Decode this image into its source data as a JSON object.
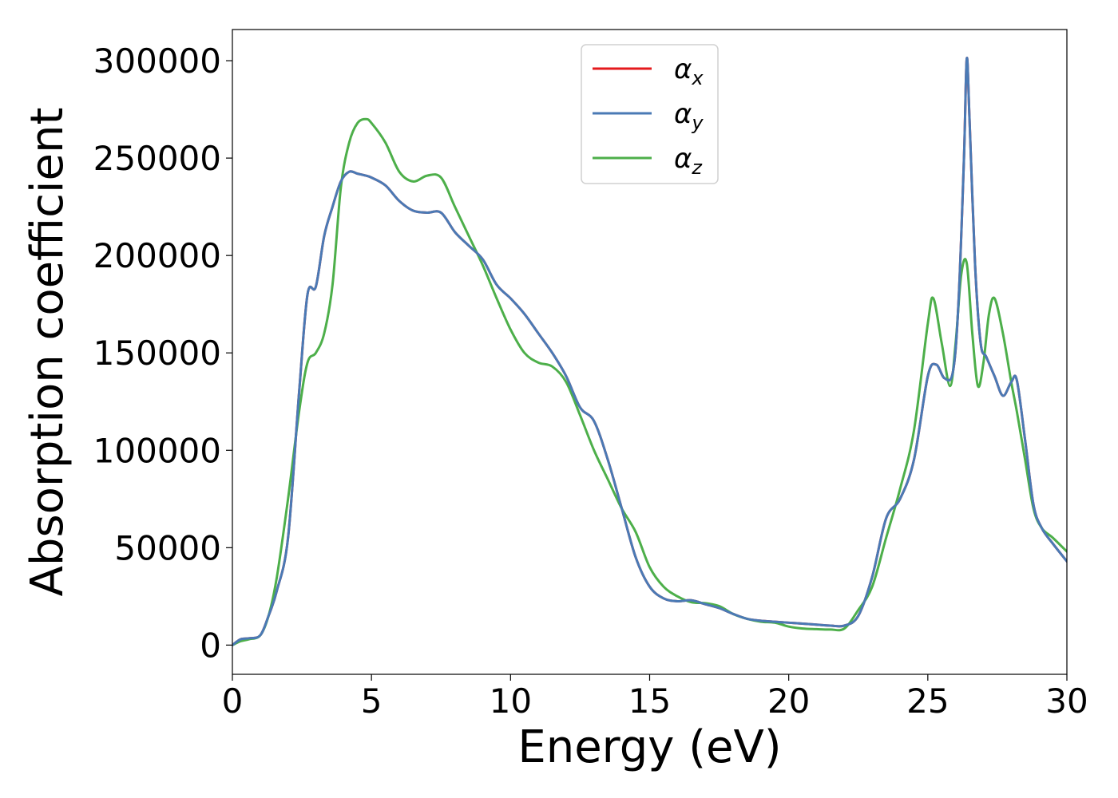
{
  "chart_data": {
    "type": "line",
    "xlabel": "Energy (eV)",
    "ylabel": "Absorption coefficient",
    "xlim": [
      0,
      30
    ],
    "ylim": [
      -15000,
      316000
    ],
    "xticks": [
      0,
      5,
      10,
      15,
      20,
      25,
      30
    ],
    "yticks": [
      0,
      50000,
      100000,
      150000,
      200000,
      250000,
      300000
    ],
    "grid": false,
    "legend_position": "top-center",
    "series": [
      {
        "name": "α",
        "subscript": "x",
        "color": "#e41a1c",
        "x": [
          0,
          0.3,
          0.6,
          1.0,
          1.3,
          1.6,
          2.0,
          2.4,
          2.7,
          3.0,
          3.3,
          3.6,
          3.9,
          4.2,
          4.5,
          4.8,
          5.0,
          5.5,
          6.0,
          6.5,
          7.0,
          7.5,
          8.0,
          8.5,
          9.0,
          9.5,
          10.0,
          10.5,
          11.0,
          11.5,
          12.0,
          12.5,
          13.0,
          13.5,
          14.0,
          14.5,
          15.0,
          15.5,
          16.0,
          16.5,
          17.0,
          17.5,
          18.0,
          18.5,
          19.0,
          19.5,
          20.0,
          20.5,
          21.0,
          21.5,
          22.0,
          22.5,
          23.0,
          23.5,
          24.0,
          24.5,
          25.0,
          25.3,
          25.6,
          25.9,
          26.1,
          26.3,
          26.4,
          26.5,
          26.7,
          26.9,
          27.1,
          27.4,
          27.7,
          28.0,
          28.2,
          28.5,
          28.8,
          29.1,
          29.5,
          30.0
        ],
        "values": [
          0,
          3000,
          3500,
          5000,
          15000,
          28000,
          55000,
          130000,
          180000,
          184000,
          210000,
          225000,
          238000,
          243000,
          242000,
          241000,
          240000,
          236000,
          228000,
          223000,
          222000,
          222000,
          212000,
          205000,
          198000,
          185000,
          178000,
          170000,
          160000,
          150000,
          138000,
          122000,
          115000,
          95000,
          70000,
          45000,
          30000,
          24000,
          22500,
          23000,
          21000,
          19000,
          16000,
          13500,
          12500,
          12000,
          11500,
          11000,
          10500,
          10000,
          10000,
          15000,
          35000,
          65000,
          75000,
          95000,
          138000,
          144000,
          137000,
          140000,
          175000,
          250000,
          301000,
          270000,
          195000,
          155000,
          148000,
          138000,
          128000,
          135000,
          136000,
          105000,
          72000,
          60000,
          52000,
          43000
        ]
      },
      {
        "name": "α",
        "subscript": "y",
        "color": "#4a7ab5",
        "x": [
          0,
          0.3,
          0.6,
          1.0,
          1.3,
          1.6,
          2.0,
          2.4,
          2.7,
          3.0,
          3.3,
          3.6,
          3.9,
          4.2,
          4.5,
          4.8,
          5.0,
          5.5,
          6.0,
          6.5,
          7.0,
          7.5,
          8.0,
          8.5,
          9.0,
          9.5,
          10.0,
          10.5,
          11.0,
          11.5,
          12.0,
          12.5,
          13.0,
          13.5,
          14.0,
          14.5,
          15.0,
          15.5,
          16.0,
          16.5,
          17.0,
          17.5,
          18.0,
          18.5,
          19.0,
          19.5,
          20.0,
          20.5,
          21.0,
          21.5,
          22.0,
          22.5,
          23.0,
          23.5,
          24.0,
          24.5,
          25.0,
          25.3,
          25.6,
          25.9,
          26.1,
          26.3,
          26.4,
          26.5,
          26.7,
          26.9,
          27.1,
          27.4,
          27.7,
          28.0,
          28.2,
          28.5,
          28.8,
          29.1,
          29.5,
          30.0
        ],
        "values": [
          0,
          3000,
          3500,
          5000,
          15000,
          28000,
          55000,
          130000,
          180000,
          184000,
          210000,
          225000,
          238000,
          243000,
          242000,
          241000,
          240000,
          236000,
          228000,
          223000,
          222000,
          222000,
          212000,
          205000,
          198000,
          185000,
          178000,
          170000,
          160000,
          150000,
          138000,
          122000,
          115000,
          95000,
          70000,
          45000,
          30000,
          24000,
          22500,
          23000,
          21000,
          19000,
          16000,
          13500,
          12500,
          12000,
          11500,
          11000,
          10500,
          10000,
          10000,
          15000,
          35000,
          65000,
          75000,
          95000,
          138000,
          144000,
          137000,
          140000,
          175000,
          250000,
          301000,
          270000,
          195000,
          155000,
          148000,
          138000,
          128000,
          135000,
          136000,
          105000,
          72000,
          60000,
          52000,
          43000
        ]
      },
      {
        "name": "α",
        "subscript": "z",
        "color": "#4daf4a",
        "x": [
          0,
          0.3,
          0.6,
          1.0,
          1.3,
          1.6,
          2.0,
          2.4,
          2.7,
          3.0,
          3.3,
          3.6,
          3.9,
          4.2,
          4.5,
          4.8,
          5.0,
          5.5,
          6.0,
          6.5,
          7.0,
          7.5,
          8.0,
          8.5,
          9.0,
          9.5,
          10.0,
          10.5,
          11.0,
          11.5,
          12.0,
          12.5,
          13.0,
          13.5,
          14.0,
          14.5,
          15.0,
          15.5,
          16.0,
          16.5,
          17.0,
          17.5,
          18.0,
          18.5,
          19.0,
          19.5,
          20.0,
          20.5,
          21.0,
          21.5,
          22.0,
          22.5,
          23.0,
          23.5,
          24.0,
          24.5,
          25.0,
          25.2,
          25.5,
          25.8,
          26.0,
          26.2,
          26.4,
          26.6,
          26.8,
          27.0,
          27.2,
          27.4,
          27.7,
          28.0,
          28.2,
          28.5,
          28.8,
          29.1,
          29.5,
          30.0
        ],
        "values": [
          0,
          2000,
          3000,
          5000,
          15000,
          35000,
          75000,
          120000,
          145000,
          150000,
          160000,
          185000,
          235000,
          258000,
          268000,
          270000,
          268000,
          258000,
          243000,
          238000,
          241000,
          240000,
          225000,
          210000,
          195000,
          178000,
          162000,
          150000,
          145000,
          143000,
          135000,
          118000,
          100000,
          85000,
          70000,
          58000,
          40000,
          30000,
          25000,
          22000,
          21500,
          20000,
          16000,
          13500,
          12000,
          11500,
          9500,
          8500,
          8200,
          8000,
          8500,
          18000,
          30000,
          55000,
          80000,
          110000,
          165000,
          178000,
          155000,
          133000,
          155000,
          190000,
          196000,
          160000,
          133000,
          145000,
          170000,
          178000,
          160000,
          135000,
          120000,
          95000,
          70000,
          60000,
          55000,
          48000
        ]
      }
    ]
  }
}
